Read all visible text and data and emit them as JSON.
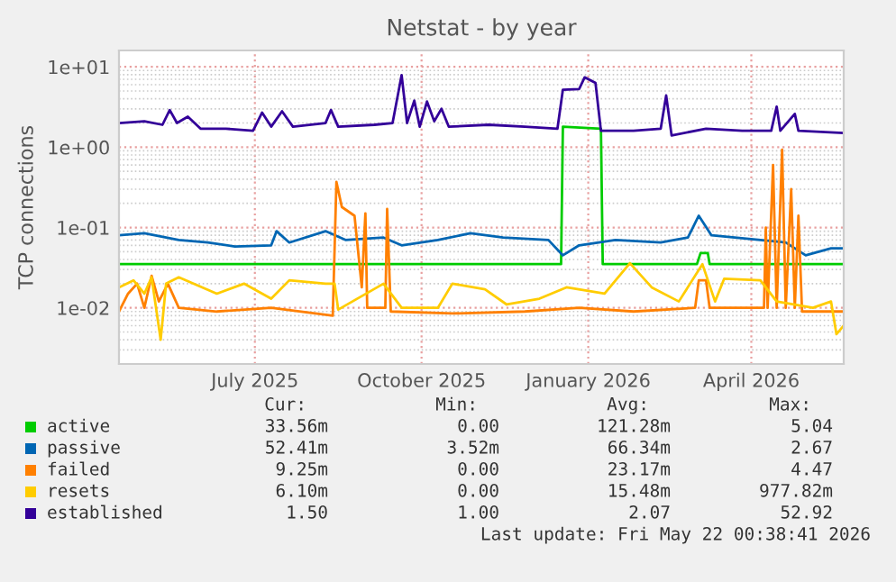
{
  "chart_data": {
    "type": "line",
    "title": "Netstat - by year",
    "ylabel": "TCP connections",
    "log": "y",
    "grid": true,
    "legend": "bottom",
    "line_style": "solid",
    "marker": "none",
    "xlim": [
      "2025-04-17",
      "2026-05-22"
    ],
    "xticks": [
      {
        "value": "2025-07-01",
        "label": "July 2025"
      },
      {
        "value": "2025-10-01",
        "label": "October 2025"
      },
      {
        "value": "2026-01-01",
        "label": "January 2026"
      },
      {
        "value": "2026-04-01",
        "label": "April 2026"
      }
    ],
    "ylim": [
      0.002,
      16
    ],
    "yticks": [
      {
        "value": 0.01,
        "label": "1e-02"
      },
      {
        "value": 0.1,
        "label": "1e-01"
      },
      {
        "value": 1,
        "label": "1e+00"
      },
      {
        "value": 10,
        "label": "1e+01"
      }
    ],
    "series": [
      {
        "name": "active",
        "color": "#00cc00",
        "x": [
          "2025-04-17",
          "2025-12-17",
          "2025-12-18",
          "2026-01-08",
          "2026-01-09",
          "2026-03-02",
          "2026-03-04",
          "2026-03-08",
          "2026-03-09",
          "2026-05-22"
        ],
        "values": [
          0.035,
          0.035,
          1.8,
          1.7,
          0.035,
          0.035,
          0.048,
          0.048,
          0.035,
          0.035
        ]
      },
      {
        "name": "passive",
        "color": "#0066b3",
        "x": [
          "2025-04-17",
          "2025-05-01",
          "2025-05-20",
          "2025-06-05",
          "2025-06-20",
          "2025-07-10",
          "2025-07-13",
          "2025-07-20",
          "2025-08-09",
          "2025-08-20",
          "2025-09-10",
          "2025-09-20",
          "2025-10-10",
          "2025-10-28",
          "2025-11-15",
          "2025-12-10",
          "2025-12-18",
          "2025-12-27",
          "2026-01-16",
          "2026-02-10",
          "2026-02-25",
          "2026-03-03",
          "2026-03-10",
          "2026-04-06",
          "2026-04-20",
          "2026-05-01",
          "2026-05-15",
          "2026-05-22"
        ],
        "values": [
          0.08,
          0.085,
          0.07,
          0.065,
          0.058,
          0.06,
          0.09,
          0.065,
          0.09,
          0.07,
          0.075,
          0.06,
          0.07,
          0.085,
          0.075,
          0.07,
          0.045,
          0.06,
          0.07,
          0.065,
          0.075,
          0.14,
          0.08,
          0.07,
          0.065,
          0.045,
          0.055,
          0.055
        ]
      },
      {
        "name": "failed",
        "color": "#ff8000",
        "x": [
          "2025-04-17",
          "2025-04-22",
          "2025-04-27",
          "2025-05-01",
          "2025-05-05",
          "2025-05-09",
          "2025-05-14",
          "2025-05-20",
          "2025-06-10",
          "2025-07-10",
          "2025-08-13",
          "2025-08-15",
          "2025-08-18",
          "2025-08-25",
          "2025-08-29",
          "2025-08-31",
          "2025-09-01",
          "2025-09-11",
          "2025-09-12",
          "2025-09-14",
          "2025-10-18",
          "2025-11-27",
          "2025-12-27",
          "2026-01-26",
          "2026-03-01",
          "2026-03-03",
          "2026-03-07",
          "2026-03-09",
          "2026-04-08",
          "2026-04-09",
          "2026-04-10",
          "2026-04-13",
          "2026-04-15",
          "2026-04-18",
          "2026-04-20",
          "2026-04-23",
          "2026-04-25",
          "2026-04-27",
          "2026-04-29",
          "2026-05-22"
        ],
        "values": [
          0.009,
          0.015,
          0.02,
          0.01,
          0.025,
          0.012,
          0.02,
          0.01,
          0.009,
          0.01,
          0.008,
          0.37,
          0.18,
          0.14,
          0.018,
          0.15,
          0.01,
          0.01,
          0.17,
          0.009,
          0.0085,
          0.009,
          0.01,
          0.009,
          0.01,
          0.022,
          0.022,
          0.01,
          0.01,
          0.1,
          0.01,
          0.6,
          0.01,
          0.93,
          0.01,
          0.3,
          0.01,
          0.14,
          0.009,
          0.009
        ]
      },
      {
        "name": "resets",
        "color": "#ffcc00",
        "x": [
          "2025-04-17",
          "2025-04-25",
          "2025-05-01",
          "2025-05-05",
          "2025-05-10",
          "2025-05-13",
          "2025-05-20",
          "2025-06-10",
          "2025-06-25",
          "2025-07-10",
          "2025-07-20",
          "2025-08-09",
          "2025-08-14",
          "2025-08-16",
          "2025-09-10",
          "2025-09-20",
          "2025-10-10",
          "2025-10-18",
          "2025-11-05",
          "2025-11-17",
          "2025-12-05",
          "2025-12-20",
          "2026-01-10",
          "2026-01-24",
          "2026-02-05",
          "2026-02-20",
          "2026-03-05",
          "2026-03-12",
          "2026-03-17",
          "2026-04-06",
          "2026-04-15",
          "2026-05-05",
          "2026-05-15",
          "2026-05-18",
          "2026-05-22"
        ],
        "values": [
          0.018,
          0.022,
          0.015,
          0.024,
          0.004,
          0.02,
          0.024,
          0.015,
          0.02,
          0.013,
          0.022,
          0.02,
          0.02,
          0.0095,
          0.02,
          0.01,
          0.01,
          0.02,
          0.017,
          0.011,
          0.013,
          0.018,
          0.015,
          0.036,
          0.018,
          0.012,
          0.035,
          0.012,
          0.023,
          0.022,
          0.012,
          0.01,
          0.012,
          0.0047,
          0.006
        ]
      },
      {
        "name": "established",
        "color": "#330099",
        "x": [
          "2025-04-17",
          "2025-05-01",
          "2025-05-11",
          "2025-05-15",
          "2025-05-19",
          "2025-05-25",
          "2025-06-01",
          "2025-06-15",
          "2025-06-30",
          "2025-07-05",
          "2025-07-10",
          "2025-07-16",
          "2025-07-22",
          "2025-08-09",
          "2025-08-12",
          "2025-08-16",
          "2025-09-05",
          "2025-09-15",
          "2025-09-20",
          "2025-09-23",
          "2025-09-27",
          "2025-09-30",
          "2025-10-04",
          "2025-10-08",
          "2025-10-12",
          "2025-10-16",
          "2025-11-07",
          "2025-11-27",
          "2025-12-15",
          "2025-12-18",
          "2025-12-27",
          "2025-12-30",
          "2026-01-05",
          "2026-01-08",
          "2026-01-26",
          "2026-02-10",
          "2026-02-13",
          "2026-02-16",
          "2026-03-07",
          "2026-03-27",
          "2026-04-12",
          "2026-04-15",
          "2026-04-17",
          "2026-04-25",
          "2026-04-27",
          "2026-05-22"
        ],
        "values": [
          2.0,
          2.1,
          1.9,
          2.9,
          2.0,
          2.4,
          1.7,
          1.7,
          1.6,
          2.7,
          1.8,
          2.8,
          1.8,
          2.0,
          2.9,
          1.8,
          1.9,
          2.0,
          7.9,
          2.0,
          3.8,
          1.8,
          3.7,
          2.1,
          3.0,
          1.8,
          1.9,
          1.8,
          1.7,
          5.2,
          5.3,
          7.4,
          6.3,
          1.6,
          1.6,
          1.7,
          4.4,
          1.4,
          1.7,
          1.6,
          1.6,
          3.2,
          1.6,
          2.6,
          1.6,
          1.5
        ]
      }
    ],
    "annotations": [
      "Cur:",
      "Min:",
      "Avg:",
      "Max:",
      "33.56m",
      "0.00",
      "121.28m",
      "5.04",
      "52.41m",
      "3.52m",
      "66.34m",
      "2.67",
      "9.25m",
      "0.00",
      "23.17m",
      "4.47",
      "6.10m",
      "0.00",
      "15.48m",
      "977.82m",
      "1.50",
      "1.00",
      "2.07",
      "52.92",
      "Last update: Fri May 22 00:38:41 2026"
    ]
  }
}
